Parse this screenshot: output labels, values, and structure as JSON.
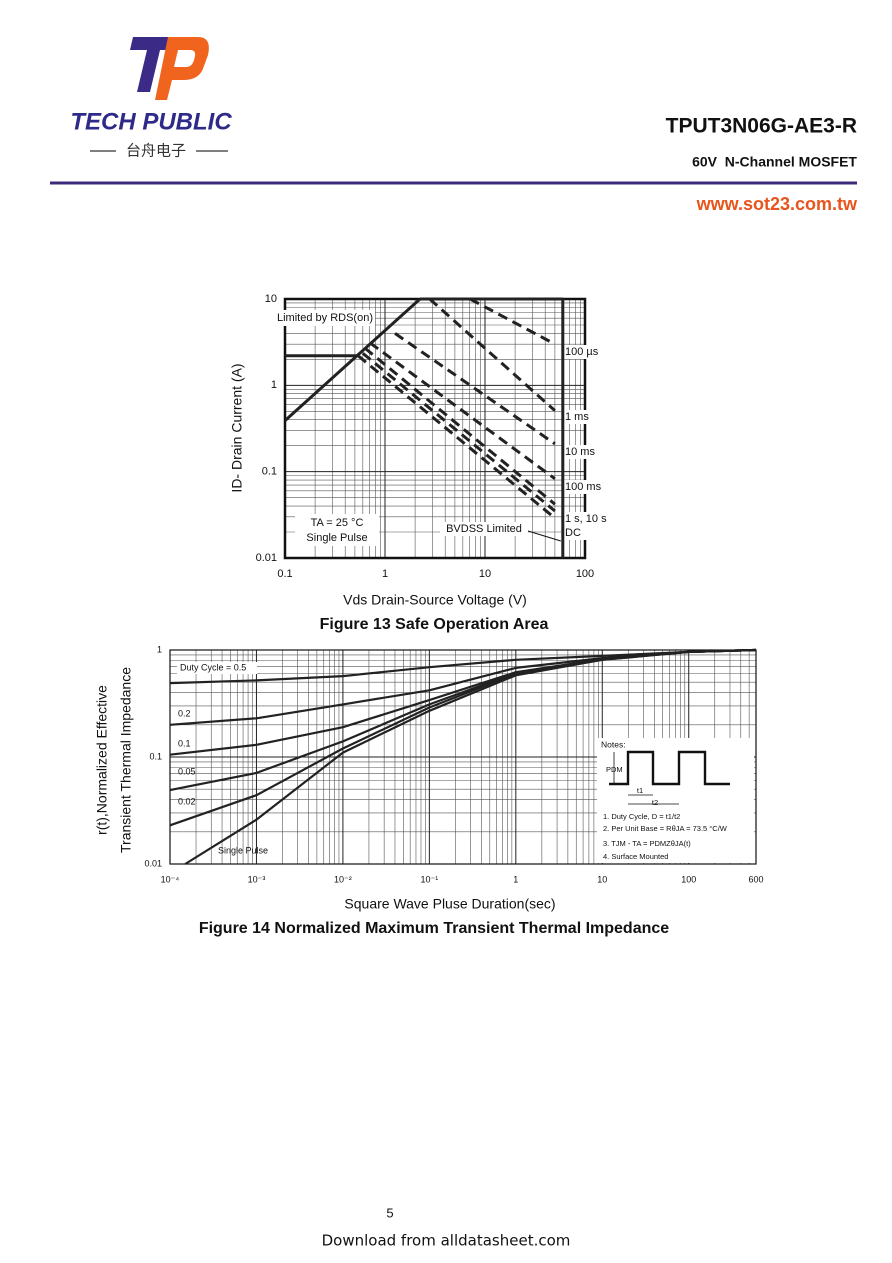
{
  "header": {
    "logo_text": "TECH PUBLIC",
    "logo_subtext": "台舟电子",
    "part_number": "TPUT3N06G-AE3-R",
    "description": "60V  N-Channel MOSFET",
    "website": "www.sot23.com.tw"
  },
  "chart_data": [
    {
      "type": "line",
      "title": "Figure 13 Safe Operation Area",
      "xlabel": "Vds Drain-Source Voltage (V)",
      "ylabel": "ID- Drain Current (A)",
      "xscale": "log",
      "yscale": "log",
      "xlim": [
        0.1,
        100
      ],
      "ylim": [
        0.01,
        10
      ],
      "xticks": [
        0.1,
        1,
        10,
        100
      ],
      "yticks": [
        0.01,
        0.1,
        1,
        10
      ],
      "grid": true,
      "minor_grid": true,
      "annotations": [
        "TA = 25 °C",
        "Single Pulse"
      ],
      "series": [
        {
          "name": "Limited by RDS(on)",
          "color": "#222222",
          "dashed": false,
          "x": [
            0.1,
            2.24
          ],
          "values": [
            0.39,
            10
          ]
        },
        {
          "name": "100 µs",
          "color": "#222222",
          "dashed": true,
          "x": [
            7.1,
            50
          ],
          "values": [
            10,
            3
          ]
        },
        {
          "name": "1 ms",
          "color": "#222222",
          "dashed": true,
          "x": [
            2.8,
            50
          ],
          "values": [
            10,
            0.51
          ]
        },
        {
          "name": "10 ms",
          "color": "#222222",
          "dashed": true,
          "x": [
            1.26,
            50
          ],
          "values": [
            4,
            0.21
          ]
        },
        {
          "name": "100 ms",
          "color": "#222222",
          "dashed": true,
          "x": [
            0.71,
            50
          ],
          "values": [
            3.1,
            0.083
          ]
        },
        {
          "name": "1 s, 10 s",
          "color": "#222222",
          "dashed": true,
          "x": [
            0.63,
            50
          ],
          "values": [
            2.7,
            0.042
          ]
        },
        {
          "color": "#222222",
          "dashed": true,
          "x": [
            0.6,
            50
          ],
          "values": [
            2.35,
            0.035
          ]
        },
        {
          "name": "DC",
          "color": "#222222",
          "dashed": true,
          "x": [
            0.54,
            50
          ],
          "values": [
            2.2,
            0.029
          ]
        },
        {
          "name": "BVDSS Limited",
          "color": "#222222",
          "dashed": false,
          "x": [
            60,
            60
          ],
          "values": [
            0.01,
            10
          ]
        },
        {
          "color": "#222222",
          "dashed": false,
          "x": [
            2.24,
            60
          ],
          "values": [
            10,
            10
          ]
        },
        {
          "color": "#222222",
          "dashed": false,
          "x": [
            0.1,
            0.55
          ],
          "values": [
            2.2,
            2.2
          ]
        }
      ]
    },
    {
      "type": "line",
      "title": "Figure 14 Normalized Maximum Transient Thermal Impedance",
      "xlabel": "Square Wave Pluse Duration(sec)",
      "ylabel": [
        "r(t),Normalized Effective",
        "Transient Thermal Impedance"
      ],
      "xscale": "log",
      "yscale": "log",
      "xlim": [
        0.0001,
        600
      ],
      "ylim": [
        0.01,
        1
      ],
      "xticks": [
        {
          "value": 0.0001,
          "label": "10⁻⁴"
        },
        {
          "value": 0.001,
          "label": "10⁻³"
        },
        {
          "value": 0.01,
          "label": "10⁻²"
        },
        {
          "value": 0.1,
          "label": "10⁻¹"
        },
        1,
        10,
        100,
        600
      ],
      "yticks": [
        0.01,
        0.1,
        1
      ],
      "grid": true,
      "minor_grid": true,
      "notes": [
        "Notes:",
        "PDM",
        "t1",
        "t2",
        "1. Duty Cycle, D = t1/t2",
        "2. Per Unit Base = RθJA = 73.5 °C/W",
        "3. TJM - TA = PDMZθJA(t)",
        "4. Surface Mounted"
      ],
      "series": [
        {
          "name": "Duty Cycle = 0.5",
          "color": "#222222",
          "x": [
            0.0001,
            0.001,
            0.01,
            0.1,
            1,
            10,
            100,
            600
          ],
          "values": [
            0.49,
            0.52,
            0.57,
            0.69,
            0.81,
            0.88,
            0.96,
            1
          ]
        },
        {
          "name": "0.2",
          "color": "#222222",
          "x": [
            0.0001,
            0.001,
            0.01,
            0.1,
            1,
            10,
            100,
            600
          ],
          "values": [
            0.2,
            0.23,
            0.31,
            0.42,
            0.68,
            0.84,
            0.96,
            1
          ]
        },
        {
          "name": "0.1",
          "color": "#222222",
          "x": [
            0.0001,
            0.001,
            0.01,
            0.1,
            1,
            10,
            100,
            600
          ],
          "values": [
            0.105,
            0.13,
            0.19,
            0.34,
            0.62,
            0.82,
            0.96,
            1
          ]
        },
        {
          "name": "0.05",
          "color": "#222222",
          "x": [
            0.0001,
            0.001,
            0.01,
            0.1,
            1,
            10,
            100,
            600
          ],
          "values": [
            0.049,
            0.071,
            0.14,
            0.31,
            0.61,
            0.82,
            0.96,
            1
          ]
        },
        {
          "name": "0.02",
          "color": "#222222",
          "x": [
            0.0001,
            0.001,
            0.01,
            0.1,
            1,
            10,
            100,
            600
          ],
          "values": [
            0.023,
            0.044,
            0.12,
            0.29,
            0.6,
            0.81,
            0.96,
            1
          ]
        },
        {
          "name": "Single Pulse",
          "color": "#222222",
          "x": [
            0.00015,
            0.001,
            0.01,
            0.1,
            1,
            10,
            100,
            600
          ],
          "values": [
            0.01,
            0.026,
            0.11,
            0.27,
            0.58,
            0.81,
            0.96,
            1
          ]
        }
      ]
    }
  ],
  "footer": {
    "page": 5,
    "note": "Download from alldatasheet.com"
  }
}
